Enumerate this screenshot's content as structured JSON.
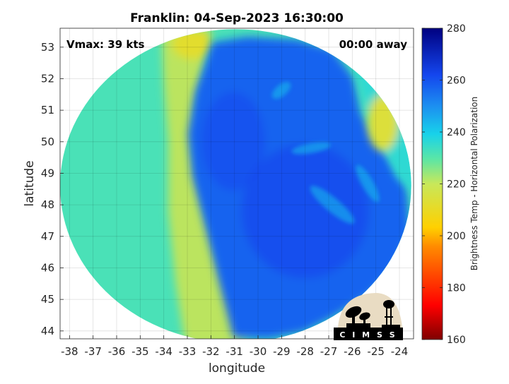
{
  "chart_data": {
    "type": "heatmap",
    "title": "Franklin: 04-Sep-2023 16:30:00",
    "annotation_left": "Vmax: 39 kts",
    "annotation_right": "00:00 away",
    "xlabel": "longitude",
    "ylabel": "latitude",
    "xlim": [
      -38.4,
      -23.4
    ],
    "ylim": [
      43.75,
      53.6
    ],
    "x_ticks": [
      -38,
      -37,
      -36,
      -35,
      -34,
      -33,
      -32,
      -31,
      -30,
      -29,
      -28,
      -27,
      -26,
      -25,
      -24
    ],
    "y_ticks": [
      44,
      45,
      46,
      47,
      48,
      49,
      50,
      51,
      52,
      53
    ],
    "grid": true,
    "colorbar": {
      "label": "Brightness Temp - Horizontal Polarization",
      "range": [
        160,
        280
      ],
      "ticks": [
        160,
        180,
        200,
        220,
        240,
        260,
        280
      ],
      "colormap": "jet",
      "placement": "right"
    },
    "swath": {
      "center_lon": -30.95,
      "center_lat": 48.6,
      "radius_lon": 7.45,
      "radius_lat": 4.97
    },
    "regions": [
      {
        "name": "west background",
        "value": 232
      },
      {
        "name": "frontal cloud band",
        "lon_range": [
          -33.5,
          -31.8
        ],
        "value": 218
      },
      {
        "name": "northern warm patch",
        "lon": -32.8,
        "lat": 53.1,
        "value": 212
      },
      {
        "name": "northeast warm patch",
        "lon": -24.7,
        "lat": 50.6,
        "value": 214
      },
      {
        "name": "cold cloud shield",
        "value": 257
      },
      {
        "name": "core",
        "lon": -28.0,
        "lat": 47.8,
        "value": 262
      }
    ],
    "logo_text": "CIMSS"
  }
}
